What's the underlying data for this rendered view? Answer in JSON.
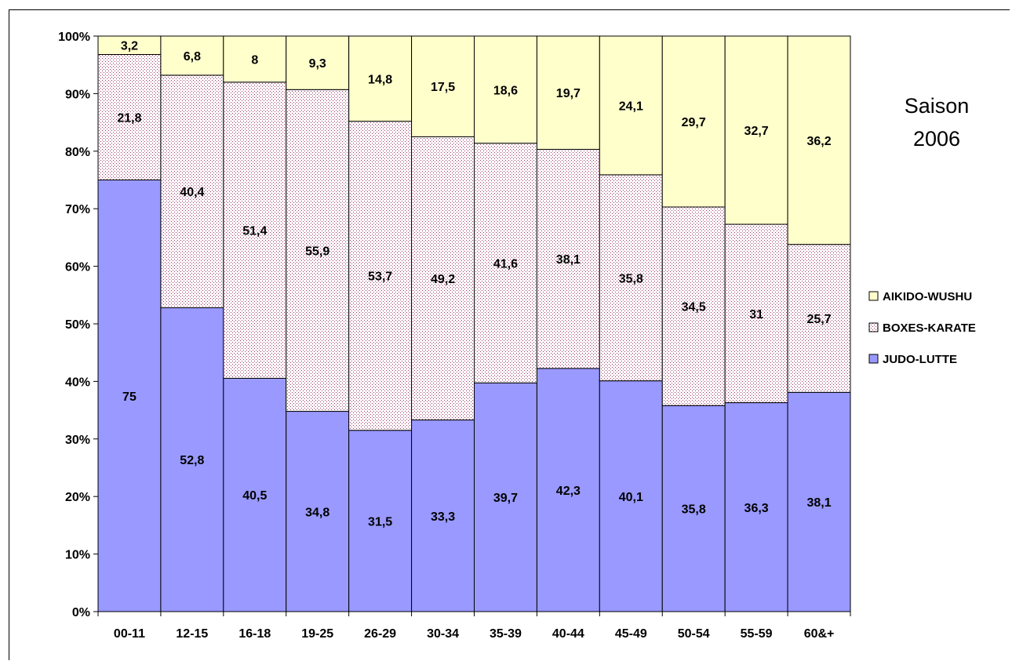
{
  "chart_data": {
    "type": "bar",
    "stacked": true,
    "normalized_percent": true,
    "categories": [
      "00-11",
      "12-15",
      "16-18",
      "19-25",
      "26-29",
      "30-34",
      "35-39",
      "40-44",
      "45-49",
      "50-54",
      "55-59",
      "60&+"
    ],
    "series": [
      {
        "name": "JUDO-LUTTE",
        "values": [
          75,
          52.8,
          40.5,
          34.8,
          31.5,
          33.3,
          39.7,
          42.3,
          40.1,
          35.8,
          36.3,
          38.1
        ],
        "labels": [
          "75",
          "52,8",
          "40,5",
          "34,8",
          "31,5",
          "33,3",
          "39,7",
          "42,3",
          "40,1",
          "35,8",
          "36,3",
          "38,1"
        ],
        "color": "#9999ff",
        "pattern": "solid"
      },
      {
        "name": "BOXES-KARATE",
        "values": [
          21.8,
          40.4,
          51.4,
          55.9,
          53.7,
          49.2,
          41.6,
          38.1,
          35.8,
          34.5,
          31,
          25.7
        ],
        "labels": [
          "21,8",
          "40,4",
          "51,4",
          "55,9",
          "53,7",
          "49,2",
          "41,6",
          "38,1",
          "35,8",
          "34,5",
          "31",
          "25,7"
        ],
        "color": "#993366",
        "pattern": "dotted"
      },
      {
        "name": "AIKIDO-WUSHU",
        "values": [
          3.2,
          6.8,
          8,
          9.3,
          14.8,
          17.5,
          18.6,
          19.7,
          24.1,
          29.7,
          32.7,
          36.2
        ],
        "labels": [
          "3,2",
          "6,8",
          "8",
          "9,3",
          "14,8",
          "17,5",
          "18,6",
          "19,7",
          "24,1",
          "29,7",
          "32,7",
          "36,2"
        ],
        "color": "#ffffcc",
        "pattern": "solid"
      }
    ],
    "y_ticks": [
      "0%",
      "10%",
      "20%",
      "30%",
      "40%",
      "50%",
      "60%",
      "70%",
      "80%",
      "90%",
      "100%"
    ],
    "ylim": [
      0,
      100
    ],
    "annotation": {
      "line1": "Saison",
      "line2": "2006"
    },
    "legend_position": "right",
    "grid": false
  }
}
